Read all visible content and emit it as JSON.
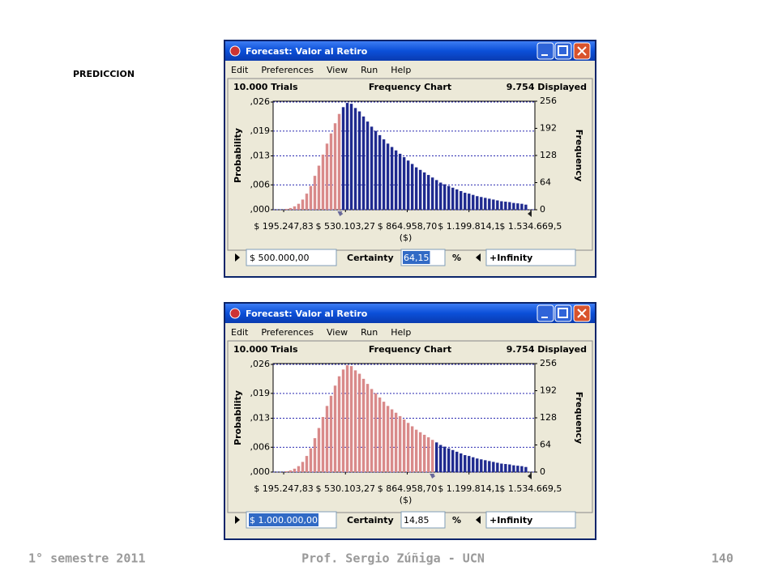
{
  "slide": {
    "title": "PREDICCION",
    "footer_left": "1° semestre 2011",
    "footer_center": "Prof. Sergio Zúñiga - UCN",
    "footer_right": "140"
  },
  "window": {
    "title": "Forecast: Valor al Retiro",
    "menu": [
      "Edit",
      "Preferences",
      "View",
      "Run",
      "Help"
    ],
    "trials": "10.000 Trials",
    "view": "Frequency Chart",
    "displayed": "9.754 Displayed",
    "certainty_label": "Certainty",
    "percent": "%",
    "upper": "+Infinity"
  },
  "chart_data": {
    "type": "histogram",
    "ylabel": "Probability",
    "y2label": "Frequency",
    "xlabel": "($)",
    "ylim": [
      0,
      0.0262
    ],
    "yticks": [
      {
        "value": 0,
        "label": ",000"
      },
      {
        "value": 0.006,
        "label": ",006"
      },
      {
        "value": 0.013,
        "label": ",013"
      },
      {
        "value": 0.019,
        "label": ",019"
      },
      {
        "value": 0.026,
        "label": ",026"
      }
    ],
    "y2lim": [
      0,
      256
    ],
    "y2ticks": [
      0,
      64,
      128,
      192,
      256
    ],
    "xlim": [
      138000,
      1557000
    ],
    "xticks": [
      {
        "value": 195247.83,
        "label": "$ 195.247,83"
      },
      {
        "value": 530103.27,
        "label": "$ 530.103,27"
      },
      {
        "value": 864958.7,
        "label": "$ 864.958,70"
      },
      {
        "value": 1199814.1,
        "label": "$ 1.199.814,1"
      },
      {
        "value": 1534669.5,
        "label": "$ 1.534.669,5"
      }
    ],
    "grid": true,
    "color_below": "#d98a8a",
    "color_above": "#1f2a8f",
    "axis": "y2",
    "bins": [
      200000,
      222000,
      244000,
      266000,
      288000,
      310000,
      332000,
      354000,
      376000,
      398000,
      420000,
      442000,
      464000,
      486000,
      508000,
      530000,
      552000,
      574000,
      596000,
      618000,
      640000,
      662000,
      684000,
      706000,
      728000,
      750000,
      772000,
      794000,
      816000,
      838000,
      860000,
      882000,
      904000,
      926000,
      948000,
      970000,
      992000,
      1014000,
      1036000,
      1058000,
      1080000,
      1102000,
      1124000,
      1146000,
      1168000,
      1190000,
      1212000,
      1234000,
      1256000,
      1278000,
      1300000,
      1322000,
      1344000,
      1366000,
      1388000,
      1410000,
      1432000,
      1454000,
      1476000,
      1498000,
      1520000
    ],
    "values": [
      2,
      4,
      8,
      14,
      24,
      38,
      56,
      80,
      104,
      130,
      156,
      180,
      204,
      226,
      242,
      252,
      250,
      240,
      232,
      220,
      208,
      196,
      186,
      176,
      166,
      156,
      148,
      140,
      132,
      124,
      116,
      108,
      100,
      94,
      88,
      82,
      76,
      70,
      64,
      60,
      56,
      52,
      48,
      44,
      40,
      38,
      35,
      32,
      30,
      28,
      26,
      24,
      22,
      20,
      19,
      18,
      16,
      15,
      14,
      12
    ]
  },
  "forecasts": [
    {
      "lower": {
        "value": 500000,
        "label": "$ 500.000,00"
      },
      "certainty": {
        "value": 64.15,
        "label": "64,15"
      },
      "focus": "certainty"
    },
    {
      "lower": {
        "value": 1000000,
        "label": "$ 1.000.000,00"
      },
      "certainty": {
        "value": 14.85,
        "label": "14,85"
      },
      "focus": "lower"
    }
  ]
}
